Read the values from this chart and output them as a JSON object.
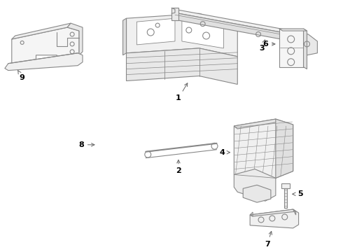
{
  "background_color": "#ffffff",
  "line_color": "#888888",
  "label_color": "#000000",
  "fig_width": 4.9,
  "fig_height": 3.6,
  "dpi": 100
}
